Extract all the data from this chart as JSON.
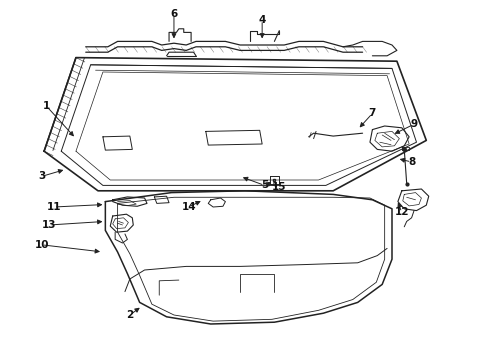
{
  "bg_color": "#ffffff",
  "line_color": "#222222",
  "label_color": "#111111",
  "figsize": [
    4.9,
    3.6
  ],
  "dpi": 100,
  "labels": {
    "1": {
      "lpos": [
        0.095,
        0.295
      ],
      "apos": [
        0.155,
        0.385
      ]
    },
    "2": {
      "lpos": [
        0.265,
        0.875
      ],
      "apos": [
        0.29,
        0.85
      ]
    },
    "3": {
      "lpos": [
        0.085,
        0.49
      ],
      "apos": [
        0.135,
        0.47
      ]
    },
    "4": {
      "lpos": [
        0.535,
        0.055
      ],
      "apos": [
        0.535,
        0.115
      ]
    },
    "5": {
      "lpos": [
        0.54,
        0.515
      ],
      "apos": [
        0.49,
        0.49
      ]
    },
    "6": {
      "lpos": [
        0.355,
        0.04
      ],
      "apos": [
        0.355,
        0.115
      ]
    },
    "7": {
      "lpos": [
        0.76,
        0.315
      ],
      "apos": [
        0.73,
        0.36
      ]
    },
    "8": {
      "lpos": [
        0.84,
        0.45
      ],
      "apos": [
        0.81,
        0.44
      ]
    },
    "9": {
      "lpos": [
        0.845,
        0.345
      ],
      "apos": [
        0.8,
        0.375
      ]
    },
    "10": {
      "lpos": [
        0.085,
        0.68
      ],
      "apos": [
        0.21,
        0.7
      ]
    },
    "11": {
      "lpos": [
        0.11,
        0.575
      ],
      "apos": [
        0.215,
        0.568
      ]
    },
    "12": {
      "lpos": [
        0.82,
        0.59
      ],
      "apos": [
        0.81,
        0.555
      ]
    },
    "13": {
      "lpos": [
        0.1,
        0.625
      ],
      "apos": [
        0.215,
        0.615
      ]
    },
    "14": {
      "lpos": [
        0.385,
        0.575
      ],
      "apos": [
        0.415,
        0.555
      ]
    },
    "15": {
      "lpos": [
        0.57,
        0.52
      ],
      "apos": [
        0.535,
        0.505
      ]
    }
  }
}
